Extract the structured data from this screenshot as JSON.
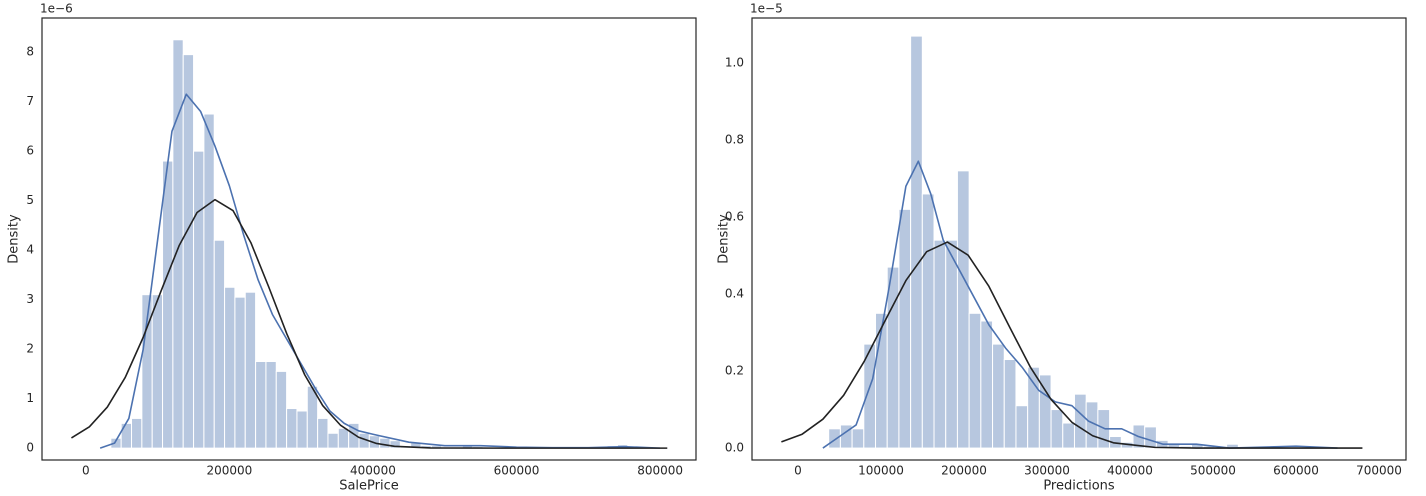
{
  "chart_data": [
    {
      "type": "histogram",
      "xlabel": "SalePrice",
      "ylabel": "Density",
      "y_offset_label": "1e−6",
      "bins": [
        34900,
        49302,
        63704,
        78106,
        92508,
        106910,
        121312,
        135714,
        150116,
        164518,
        178920,
        193322,
        207724,
        222126,
        236528,
        250930,
        265332,
        279734,
        294136,
        308538,
        322940,
        337342,
        351744,
        366146,
        380548,
        394950,
        409352,
        423754,
        438156,
        452558,
        466960,
        481362,
        495764,
        510166,
        524568,
        538970,
        553372,
        567774,
        582176,
        596578,
        610980,
        625382,
        639784,
        654186,
        668588,
        682990,
        697392,
        711794,
        726196,
        740598,
        755000
      ],
      "values": [
        0.2,
        0.5,
        0.6,
        3.1,
        3.1,
        5.8,
        8.25,
        7.95,
        6.0,
        6.75,
        4.2,
        3.25,
        3.05,
        3.15,
        1.75,
        1.75,
        1.55,
        0.8,
        0.75,
        1.25,
        0.6,
        0.3,
        0.4,
        0.5,
        0.3,
        0.25,
        0.2,
        0.15,
        0.05,
        0.12,
        0.05,
        0.05,
        0.02,
        0.02,
        0.05,
        0.03,
        0.02,
        0.02,
        0,
        0,
        0,
        0,
        0,
        0,
        0,
        0,
        0,
        0.02,
        0.05,
        0.07
      ],
      "color": "#4c72b0",
      "kde": {
        "color": "#4c72b0",
        "x": [
          20000,
          40000,
          60000,
          80000,
          100000,
          120000,
          140000,
          160000,
          180000,
          200000,
          220000,
          240000,
          260000,
          280000,
          300000,
          320000,
          340000,
          360000,
          380000,
          400000,
          450000,
          500000,
          550000,
          600000,
          650000,
          700000,
          750000,
          800000
        ],
        "values": [
          0,
          0.1,
          0.6,
          2.0,
          4.2,
          6.4,
          7.15,
          6.8,
          6.1,
          5.3,
          4.3,
          3.4,
          2.7,
          2.2,
          1.7,
          1.2,
          0.75,
          0.5,
          0.35,
          0.28,
          0.12,
          0.05,
          0.05,
          0.02,
          0.01,
          0.01,
          0.03,
          0
        ]
      },
      "fit": {
        "color": "#222222",
        "x": [
          -20000,
          5000,
          30000,
          55000,
          80000,
          105000,
          130000,
          155000,
          180000,
          205000,
          230000,
          255000,
          280000,
          305000,
          330000,
          355000,
          380000,
          405000,
          430000,
          480000,
          580000,
          680000,
          810000
        ],
        "values": [
          0.205,
          0.43,
          0.83,
          1.43,
          2.24,
          3.18,
          4.09,
          4.76,
          5.02,
          4.8,
          4.15,
          3.25,
          2.31,
          1.48,
          0.86,
          0.46,
          0.22,
          0.094,
          0.037,
          0.004,
          0,
          0,
          0
        ]
      },
      "xlim": [
        -61000,
        850000
      ],
      "ylim": [
        -0.24,
        8.69
      ],
      "xticks": [
        0,
        200000,
        400000,
        600000,
        800000
      ],
      "yticks": [
        0,
        1,
        2,
        3,
        4,
        5,
        6,
        7,
        8
      ]
    },
    {
      "type": "histogram",
      "xlabel": "Predictions",
      "ylabel": "Density",
      "y_offset_label": "1e−5",
      "bins": [
        37000,
        51100,
        65200,
        79300,
        93400,
        107500,
        121600,
        135700,
        149800,
        163900,
        178000,
        192100,
        206200,
        220300,
        234400,
        248500,
        262600,
        276700,
        290800,
        304900,
        319000,
        333100,
        347200,
        361300,
        375400,
        389500,
        403600,
        417700,
        431800,
        445900,
        460000,
        474100,
        488200,
        502300,
        516400,
        530500
      ],
      "values": [
        0.05,
        0.06,
        0.05,
        0.27,
        0.35,
        0.47,
        0.62,
        1.07,
        0.66,
        0.54,
        0.54,
        0.72,
        0.35,
        0.33,
        0.27,
        0.23,
        0.11,
        0.21,
        0.19,
        0.1,
        0.065,
        0.14,
        0.12,
        0.1,
        0.03,
        0.015,
        0.06,
        0.055,
        0.02,
        0.01,
        0.005,
        0.01,
        0.005,
        0,
        0.01
      ],
      "color": "#4c72b0",
      "kde": {
        "color": "#4c72b0",
        "x": [
          30000,
          50000,
          70000,
          90000,
          110000,
          130000,
          145000,
          160000,
          175000,
          190000,
          210000,
          230000,
          250000,
          270000,
          290000,
          310000,
          330000,
          350000,
          370000,
          390000,
          410000,
          440000,
          480000,
          520000,
          600000,
          650000
        ],
        "values": [
          0,
          0.03,
          0.06,
          0.18,
          0.42,
          0.68,
          0.745,
          0.66,
          0.54,
          0.48,
          0.4,
          0.32,
          0.26,
          0.21,
          0.15,
          0.12,
          0.11,
          0.07,
          0.05,
          0.05,
          0.03,
          0.01,
          0.01,
          0,
          0.005,
          0
        ]
      },
      "fit": {
        "color": "#222222",
        "x": [
          -20000,
          5000,
          30000,
          55000,
          80000,
          105000,
          130000,
          155000,
          180000,
          205000,
          230000,
          255000,
          280000,
          305000,
          330000,
          355000,
          380000,
          430000,
          480000,
          580000,
          680000
        ],
        "values": [
          0.016,
          0.036,
          0.075,
          0.137,
          0.226,
          0.331,
          0.435,
          0.51,
          0.535,
          0.501,
          0.42,
          0.314,
          0.21,
          0.126,
          0.067,
          0.032,
          0.0137,
          0.0018,
          0,
          0,
          0
        ]
      },
      "xlim": [
        -55400,
        732500
      ],
      "ylim": [
        -0.031,
        1.117
      ],
      "xticks": [
        0,
        100000,
        200000,
        300000,
        400000,
        500000,
        600000,
        700000
      ],
      "yticks": [
        {
          "value": 0,
          "label": "0.0"
        },
        0.2,
        0.4,
        0.6,
        0.8,
        {
          "value": 1,
          "label": "1.0"
        }
      ]
    }
  ]
}
